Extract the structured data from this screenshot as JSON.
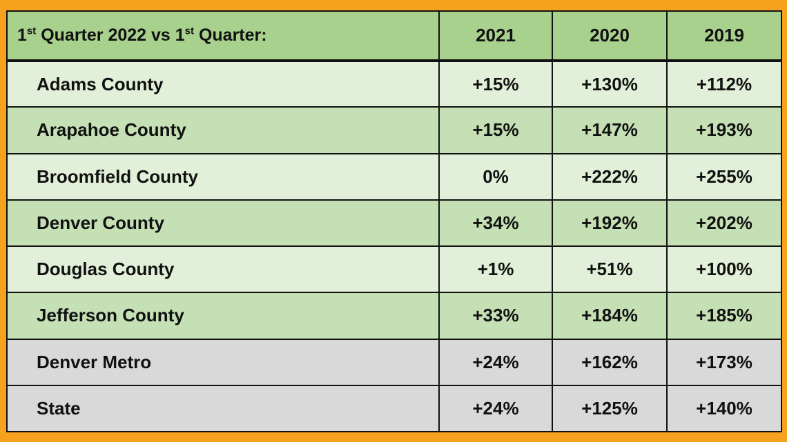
{
  "header": {
    "label_part1": "1",
    "sup1": "st",
    "label_part2": " Quarter 2022 vs 1",
    "sup2": "st",
    "label_part3": " Quarter:",
    "years": [
      "2021",
      "2020",
      "2019"
    ]
  },
  "rows": [
    {
      "name": "Adams County",
      "v2021": "+15%",
      "v2020": "+130%",
      "v2019": "+112%",
      "shade": "light"
    },
    {
      "name": "Arapahoe County",
      "v2021": "+15%",
      "v2020": "+147%",
      "v2019": "+193%",
      "shade": "mid"
    },
    {
      "name": "Broomfield County",
      "v2021": "0%",
      "v2020": "+222%",
      "v2019": "+255%",
      "shade": "light"
    },
    {
      "name": "Denver County",
      "v2021": "+34%",
      "v2020": "+192%",
      "v2019": "+202%",
      "shade": "mid"
    },
    {
      "name": "Douglas County",
      "v2021": "+1%",
      "v2020": "+51%",
      "v2019": "+100%",
      "shade": "light"
    },
    {
      "name": "Jefferson County",
      "v2021": "+33%",
      "v2020": "+184%",
      "v2019": "+185%",
      "shade": "mid"
    },
    {
      "name": "Denver Metro",
      "v2021": "+24%",
      "v2020": "+162%",
      "v2019": "+173%",
      "shade": "gray"
    },
    {
      "name": "State",
      "v2021": "+24%",
      "v2020": "+125%",
      "v2019": "+140%",
      "shade": "gray"
    }
  ],
  "colors": {
    "frame": "#f6a21e",
    "header": "#a9d18e",
    "row_light": "#e2efd9",
    "row_mid": "#c5e0b4",
    "row_gray": "#d9d9d9"
  }
}
